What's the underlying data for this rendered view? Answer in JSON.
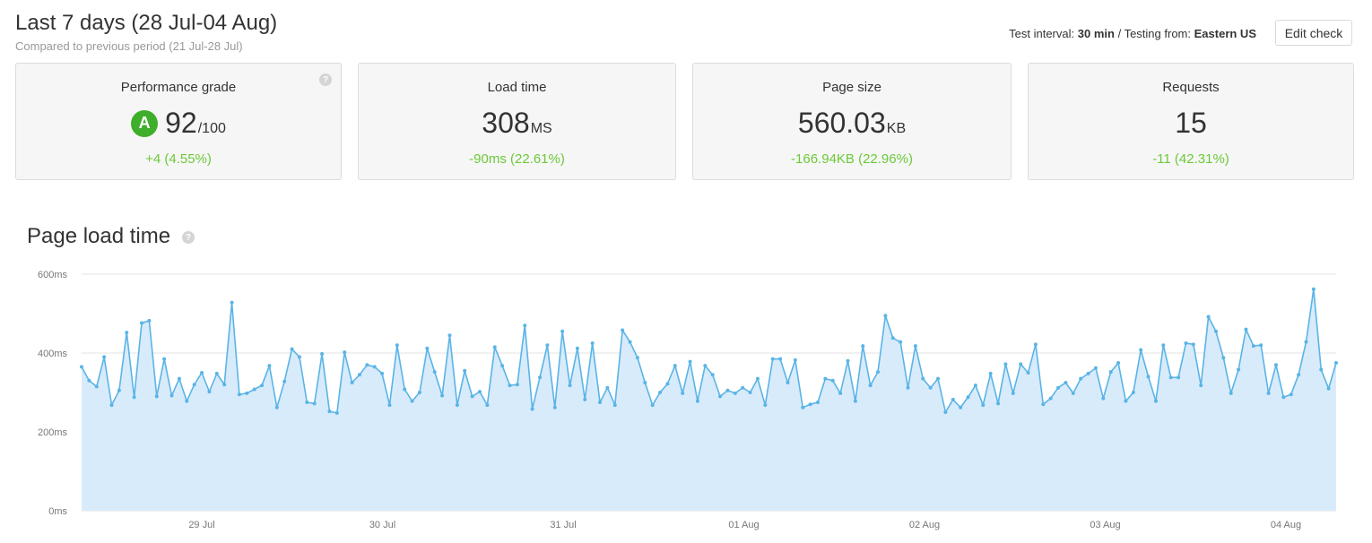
{
  "header": {
    "title": "Last 7 days (28 Jul-04 Aug)",
    "subtitle": "Compared to previous period (21 Jul-28 Jul)",
    "test_interval_label": "Test interval:",
    "test_interval_value": "30 min",
    "separator": "/",
    "testing_from_label": "Testing from:",
    "testing_from_value": "Eastern US",
    "edit_button": "Edit check"
  },
  "cards": {
    "performance": {
      "label": "Performance grade",
      "grade": "A",
      "value": "92",
      "unit": "/100",
      "delta": "+4 (4.55%)"
    },
    "load_time": {
      "label": "Load time",
      "value": "308",
      "unit": "MS",
      "delta": "-90ms (22.61%)"
    },
    "page_size": {
      "label": "Page size",
      "value": "560.03",
      "unit": "KB",
      "delta": "-166.94KB (22.96%)"
    },
    "requests": {
      "label": "Requests",
      "value": "15",
      "delta": "-11 (42.31%)"
    }
  },
  "chart_section": {
    "title": "Page load time",
    "help_glyph": "?"
  },
  "colors": {
    "positive": "#6cc93a",
    "grade": "#3fae2a",
    "line": "#5ab4e6",
    "fill": "#d8ebfb"
  },
  "chart_data": {
    "type": "area",
    "title": "Page load time",
    "y_unit": "ms",
    "ylim": [
      0,
      600
    ],
    "y_ticks": [
      "0ms",
      "200ms",
      "400ms",
      "600ms"
    ],
    "x_ticks": [
      "29 Jul",
      "30 Jul",
      "31 Jul",
      "01 Aug",
      "02 Aug",
      "03 Aug",
      "04 Aug"
    ],
    "grid": true,
    "values": [
      365,
      330,
      315,
      390,
      268,
      305,
      452,
      288,
      476,
      482,
      290,
      385,
      292,
      335,
      278,
      320,
      350,
      302,
      348,
      320,
      528,
      295,
      298,
      308,
      318,
      368,
      262,
      328,
      410,
      390,
      275,
      272,
      398,
      252,
      248,
      402,
      325,
      345,
      370,
      365,
      348,
      268,
      420,
      308,
      278,
      300,
      412,
      352,
      292,
      445,
      268,
      355,
      290,
      302,
      268,
      415,
      368,
      318,
      320,
      470,
      258,
      338,
      420,
      262,
      455,
      318,
      412,
      282,
      425,
      275,
      312,
      268,
      458,
      428,
      388,
      325,
      268,
      300,
      322,
      368,
      298,
      378,
      278,
      368,
      345,
      290,
      305,
      298,
      312,
      300,
      335,
      268,
      385,
      385,
      325,
      382,
      262,
      270,
      275,
      335,
      330,
      298,
      380,
      278,
      418,
      318,
      352,
      495,
      438,
      428,
      312,
      418,
      335,
      312,
      335,
      250,
      282,
      262,
      288,
      318,
      268,
      348,
      272,
      372,
      298,
      372,
      350,
      422,
      270,
      285,
      312,
      325,
      298,
      335,
      348,
      362,
      285,
      352,
      375,
      278,
      300,
      408,
      340,
      278,
      420,
      338,
      338,
      425,
      422,
      318,
      492,
      455,
      388,
      298,
      358,
      460,
      418,
      420,
      298,
      370,
      288,
      295,
      345,
      428,
      562,
      358,
      310,
      375
    ]
  }
}
